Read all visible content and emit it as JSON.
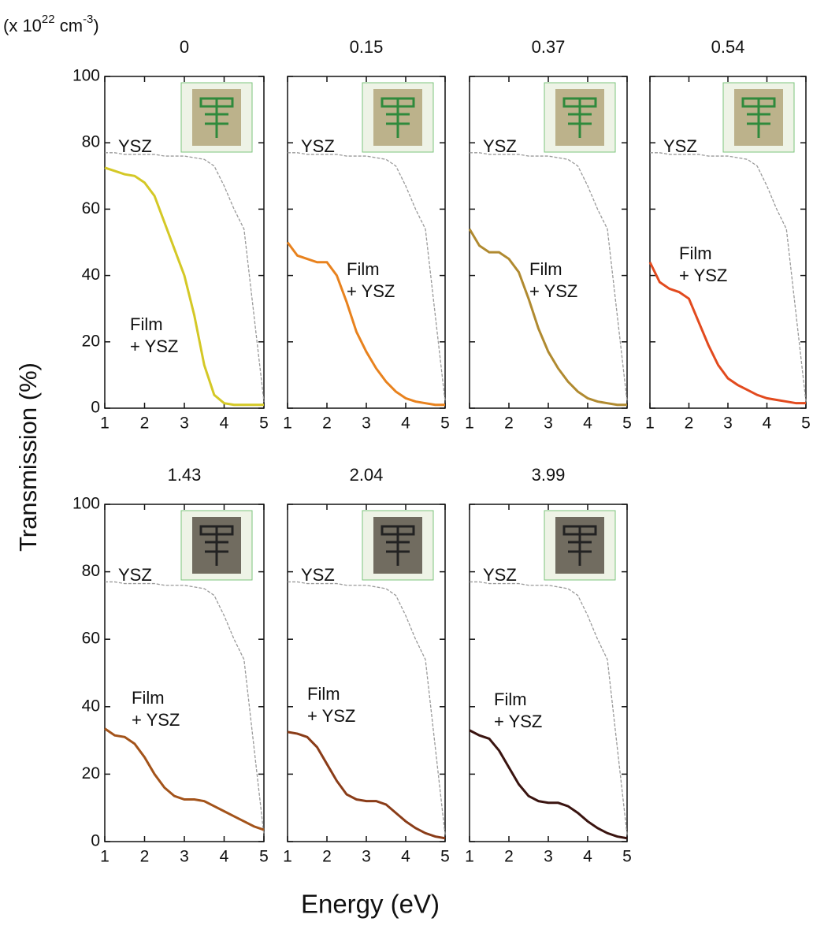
{
  "figure": {
    "unit_label": [
      "(x 10",
      "22",
      " cm",
      "-3",
      ")"
    ],
    "ylabel": "Transmission (%)",
    "xlabel": "Energy (eV)"
  },
  "chart_data": [
    {
      "type": "line",
      "title": "0",
      "x": [
        1,
        1.25,
        1.5,
        1.75,
        2,
        2.25,
        2.5,
        2.75,
        3,
        3.25,
        3.5,
        3.75,
        4,
        4.25,
        4.5,
        4.75,
        5
      ],
      "xlim": [
        1,
        5
      ],
      "xticks": [
        1,
        2,
        3,
        4,
        5
      ],
      "ylim": [
        0,
        100
      ],
      "yticks": [
        0,
        20,
        40,
        60,
        80,
        100
      ],
      "series": [
        {
          "name": "YSZ",
          "color": "#9a9a9a",
          "dashed": true,
          "values": [
            77,
            77,
            76.5,
            76.5,
            76.5,
            76.5,
            76,
            76,
            76,
            75.5,
            75,
            73,
            67,
            60,
            54,
            28,
            2
          ]
        },
        {
          "name": "Film\n+ YSZ",
          "color": "#d4c826",
          "values": [
            72.5,
            71.5,
            70.5,
            70,
            68,
            64,
            56,
            48,
            40,
            28,
            13,
            4,
            1.5,
            1,
            1,
            1,
            1
          ]
        }
      ]
    },
    {
      "type": "line",
      "title": "0.15",
      "x": [
        1,
        1.25,
        1.5,
        1.75,
        2,
        2.25,
        2.5,
        2.75,
        3,
        3.25,
        3.5,
        3.75,
        4,
        4.25,
        4.5,
        4.75,
        5
      ],
      "xlim": [
        1,
        5
      ],
      "xticks": [
        1,
        2,
        3,
        4,
        5
      ],
      "ylim": [
        0,
        100
      ],
      "yticks": [
        0,
        20,
        40,
        60,
        80,
        100
      ],
      "series": [
        {
          "name": "YSZ",
          "color": "#9a9a9a",
          "dashed": true,
          "values": [
            77,
            77,
            76.5,
            76.5,
            76.5,
            76.5,
            76,
            76,
            76,
            75.5,
            75,
            73,
            67,
            60,
            54,
            28,
            2
          ]
        },
        {
          "name": "Film\n+ YSZ",
          "color": "#e8821e",
          "values": [
            50,
            46,
            45,
            44,
            44,
            40,
            32,
            23,
            17,
            12,
            8,
            5,
            3,
            2,
            1.5,
            1,
            1
          ]
        }
      ]
    },
    {
      "type": "line",
      "title": "0.37",
      "x": [
        1,
        1.25,
        1.5,
        1.75,
        2,
        2.25,
        2.5,
        2.75,
        3,
        3.25,
        3.5,
        3.75,
        4,
        4.25,
        4.5,
        4.75,
        5
      ],
      "xlim": [
        1,
        5
      ],
      "xticks": [
        1,
        2,
        3,
        4,
        5
      ],
      "ylim": [
        0,
        100
      ],
      "yticks": [
        0,
        20,
        40,
        60,
        80,
        100
      ],
      "series": [
        {
          "name": "YSZ",
          "color": "#9a9a9a",
          "dashed": true,
          "values": [
            77,
            77,
            76.5,
            76.5,
            76.5,
            76.5,
            76,
            76,
            76,
            75.5,
            75,
            73,
            67,
            60,
            54,
            28,
            2
          ]
        },
        {
          "name": "Film\n+ YSZ",
          "color": "#b08a30",
          "values": [
            54,
            49,
            47,
            47,
            45,
            41,
            33,
            24,
            17,
            12,
            8,
            5,
            3,
            2,
            1.5,
            1,
            1
          ]
        }
      ]
    },
    {
      "type": "line",
      "title": "0.54",
      "x": [
        1,
        1.25,
        1.5,
        1.75,
        2,
        2.25,
        2.5,
        2.75,
        3,
        3.25,
        3.5,
        3.75,
        4,
        4.25,
        4.5,
        4.75,
        5
      ],
      "xlim": [
        1,
        5
      ],
      "xticks": [
        1,
        2,
        3,
        4,
        5
      ],
      "ylim": [
        0,
        100
      ],
      "yticks": [
        0,
        20,
        40,
        60,
        80,
        100
      ],
      "series": [
        {
          "name": "YSZ",
          "color": "#9a9a9a",
          "dashed": true,
          "values": [
            77,
            77,
            76.5,
            76.5,
            76.5,
            76.5,
            76,
            76,
            76,
            75.5,
            75,
            73,
            67,
            60,
            54,
            28,
            2
          ]
        },
        {
          "name": "Film\n+ YSZ",
          "color": "#e24a1e",
          "values": [
            44,
            38,
            36,
            35,
            33,
            26,
            19,
            13,
            9,
            7,
            5.5,
            4,
            3,
            2.5,
            2,
            1.5,
            1.5
          ]
        }
      ]
    },
    {
      "type": "line",
      "title": "1.43",
      "x": [
        1,
        1.25,
        1.5,
        1.75,
        2,
        2.25,
        2.5,
        2.75,
        3,
        3.25,
        3.5,
        3.75,
        4,
        4.25,
        4.5,
        4.75,
        5
      ],
      "xlim": [
        1,
        5
      ],
      "xticks": [
        1,
        2,
        3,
        4,
        5
      ],
      "ylim": [
        0,
        100
      ],
      "yticks": [
        0,
        20,
        40,
        60,
        80,
        100
      ],
      "series": [
        {
          "name": "YSZ",
          "color": "#9a9a9a",
          "dashed": true,
          "values": [
            77,
            77,
            76.5,
            76.5,
            76.5,
            76.5,
            76,
            76,
            76,
            75.5,
            75,
            73,
            67,
            60,
            54,
            28,
            2
          ]
        },
        {
          "name": "Film\n+ YSZ",
          "color": "#a3531a",
          "values": [
            33.5,
            31.5,
            31,
            29,
            25,
            20,
            16,
            13.5,
            12.5,
            12.5,
            12,
            10.5,
            9,
            7.5,
            6,
            4.5,
            3.5
          ]
        }
      ]
    },
    {
      "type": "line",
      "title": "2.04",
      "x": [
        1,
        1.25,
        1.5,
        1.75,
        2,
        2.25,
        2.5,
        2.75,
        3,
        3.25,
        3.5,
        3.75,
        4,
        4.25,
        4.5,
        4.75,
        5
      ],
      "xlim": [
        1,
        5
      ],
      "xticks": [
        1,
        2,
        3,
        4,
        5
      ],
      "ylim": [
        0,
        100
      ],
      "yticks": [
        0,
        20,
        40,
        60,
        80,
        100
      ],
      "series": [
        {
          "name": "YSZ",
          "color": "#9a9a9a",
          "dashed": true,
          "values": [
            77,
            77,
            76.5,
            76.5,
            76.5,
            76.5,
            76,
            76,
            76,
            75.5,
            75,
            73,
            67,
            60,
            54,
            28,
            2
          ]
        },
        {
          "name": "Film\n+ YSZ",
          "color": "#8a3c18",
          "values": [
            32.5,
            32,
            31,
            28,
            23,
            18,
            14,
            12.5,
            12,
            12,
            11,
            8.5,
            6,
            4,
            2.5,
            1.5,
            1
          ]
        }
      ]
    },
    {
      "type": "line",
      "title": "3.99",
      "x": [
        1,
        1.25,
        1.5,
        1.75,
        2,
        2.25,
        2.5,
        2.75,
        3,
        3.25,
        3.5,
        3.75,
        4,
        4.25,
        4.5,
        4.75,
        5
      ],
      "xlim": [
        1,
        5
      ],
      "xticks": [
        1,
        2,
        3,
        4,
        5
      ],
      "ylim": [
        0,
        100
      ],
      "yticks": [
        0,
        20,
        40,
        60,
        80,
        100
      ],
      "series": [
        {
          "name": "YSZ",
          "color": "#9a9a9a",
          "dashed": true,
          "values": [
            77,
            77,
            76.5,
            76.5,
            76.5,
            76.5,
            76,
            76,
            76,
            75.5,
            75,
            73,
            67,
            60,
            54,
            28,
            2
          ]
        },
        {
          "name": "Film\n+ YSZ",
          "color": "#3a1410",
          "values": [
            33,
            31.5,
            30.5,
            27,
            22,
            17,
            13.5,
            12,
            11.5,
            11.5,
            10.5,
            8.5,
            6,
            4,
            2.5,
            1.5,
            1
          ]
        }
      ]
    }
  ]
}
